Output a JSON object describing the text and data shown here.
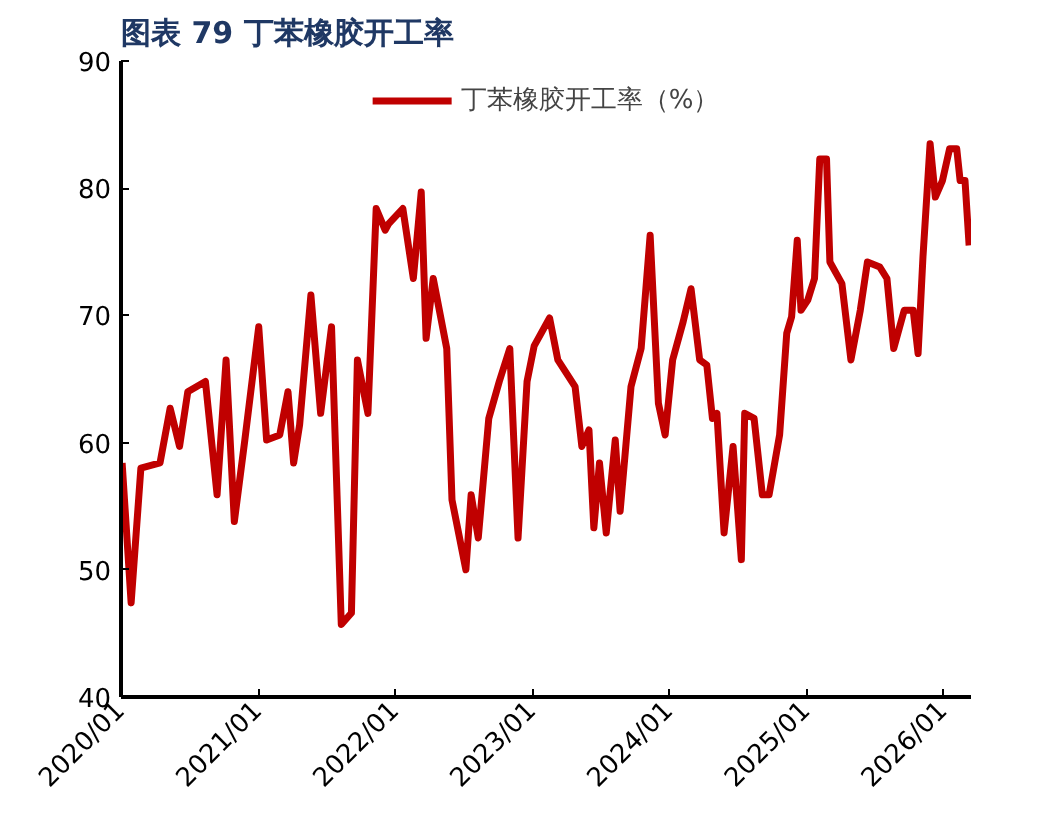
{
  "chart_data": {
    "type": "line",
    "title": "图表 79  丁苯橡胶开工率",
    "legend": "top center",
    "grid": false,
    "marker": "none",
    "line_style": "solid",
    "xlim": [
      "2020-01-01",
      "2026-03-15"
    ],
    "xticks": [
      {
        "value": "2020-01-01",
        "label": "2020/01"
      },
      {
        "value": "2021-01-01",
        "label": "2021/01"
      },
      {
        "value": "2022-01-01",
        "label": "2022/01"
      },
      {
        "value": "2023-01-01",
        "label": "2023/01"
      },
      {
        "value": "2024-01-01",
        "label": "2024/01"
      },
      {
        "value": "2025-01-01",
        "label": "2025/01"
      },
      {
        "value": "2026-01-01",
        "label": "2026/01"
      }
    ],
    "ylim": [
      40,
      90
    ],
    "yticks": [
      40,
      50,
      60,
      70,
      80,
      90
    ],
    "x": [
      "2020-01-04",
      "2020-01-28",
      "2020-02-23",
      "2020-04-14",
      "2020-05-11",
      "2020-06-05",
      "2020-06-27",
      "2020-08-13",
      "2020-09-13",
      "2020-10-07",
      "2020-10-29",
      "2020-11-26",
      "2021-01-02",
      "2021-01-23",
      "2021-02-27",
      "2021-03-21",
      "2021-04-05",
      "2021-04-21",
      "2021-05-21",
      "2021-06-16",
      "2021-07-15",
      "2021-08-10",
      "2021-09-06",
      "2021-09-22",
      "2021-10-20",
      "2021-11-11",
      "2021-12-05",
      "2021-12-14",
      "2022-01-21",
      "2022-02-18",
      "2022-03-11",
      "2022-03-24",
      "2022-04-12",
      "2022-05-18",
      "2022-06-01",
      "2022-07-08",
      "2022-07-22",
      "2022-08-10",
      "2022-09-07",
      "2022-10-05",
      "2022-11-02",
      "2022-11-24",
      "2022-12-18",
      "2023-01-06",
      "2023-02-16",
      "2023-03-10",
      "2023-04-25",
      "2023-05-13",
      "2023-06-01",
      "2023-06-14",
      "2023-06-29",
      "2023-07-17",
      "2023-08-10",
      "2023-08-23",
      "2023-09-21",
      "2023-10-18",
      "2023-11-11",
      "2023-12-03",
      "2023-12-21",
      "2024-01-10",
      "2024-02-07",
      "2024-02-28",
      "2024-03-22",
      "2024-04-10",
      "2024-04-25",
      "2024-05-07",
      "2024-05-26",
      "2024-06-19",
      "2024-07-11",
      "2024-07-20",
      "2024-08-14",
      "2024-09-05",
      "2024-09-23",
      "2024-10-21",
      "2024-11-09",
      "2024-11-22",
      "2024-12-07",
      "2024-12-17",
      "2025-01-04",
      "2025-01-22",
      "2025-02-05",
      "2025-02-23",
      "2025-03-04",
      "2025-04-05",
      "2025-04-29",
      "2025-05-24",
      "2025-06-12",
      "2025-07-15",
      "2025-08-03",
      "2025-08-21",
      "2025-09-18",
      "2025-10-12",
      "2025-10-25",
      "2025-11-07",
      "2025-11-26",
      "2025-12-10",
      "2025-12-29",
      "2026-01-17",
      "2026-02-05",
      "2026-02-14",
      "2026-02-27",
      "2026-03-10"
    ],
    "series": [
      {
        "name": "丁苯橡胶开工率（%）",
        "color": "#c00000",
        "values": [
          58.4,
          47.4,
          58,
          58.4,
          62.7,
          59.7,
          64,
          64.8,
          55.9,
          66.5,
          53.8,
          60.2,
          69.1,
          60.2,
          60.6,
          64,
          58.4,
          61.4,
          71.6,
          62.3,
          69.1,
          45.7,
          46.6,
          66.5,
          62.3,
          78.4,
          76.7,
          77.2,
          78.4,
          72.9,
          79.7,
          68.2,
          72.9,
          67.4,
          55.5,
          50,
          55.9,
          52.5,
          61.9,
          64.8,
          67.4,
          52.5,
          64.8,
          67.6,
          69.8,
          66.5,
          64.4,
          59.7,
          61,
          53.3,
          58.4,
          52.9,
          60.2,
          54.6,
          64.4,
          67.4,
          76.3,
          63.1,
          60.6,
          66.5,
          69.5,
          72.1,
          66.5,
          66.1,
          61.9,
          62.3,
          52.9,
          59.7,
          50.8,
          62.3,
          61.9,
          55.9,
          55.9,
          60.6,
          68.6,
          69.9,
          75.9,
          70.4,
          71.2,
          72.9,
          82.3,
          82.3,
          74.2,
          72.5,
          66.5,
          70.4,
          74.2,
          73.8,
          72.9,
          67.4,
          70.4,
          70.4,
          67,
          74.6,
          83.5,
          79.3,
          80.6,
          83.1,
          83.1,
          80.6,
          80.6,
          75.5
        ]
      }
    ]
  }
}
